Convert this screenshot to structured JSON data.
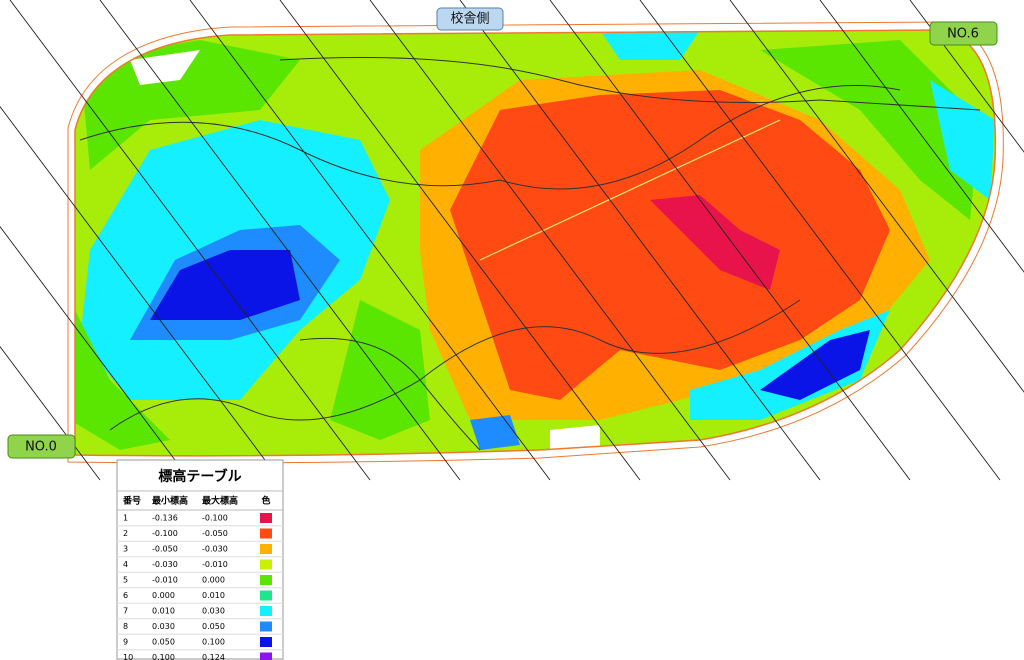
{
  "map": {
    "labels": {
      "top": "校舎側",
      "right": "NO.6",
      "left": "NO.0"
    }
  },
  "legend": {
    "title": "標高テーブル",
    "headers": [
      "番号",
      "最小標高",
      "最大標高",
      "色"
    ],
    "rows": [
      {
        "no": 1,
        "min": "-0.136",
        "max": "-0.100",
        "color": "#e8134a"
      },
      {
        "no": 2,
        "min": "-0.100",
        "max": "-0.050",
        "color": "#ff4a14"
      },
      {
        "no": 3,
        "min": "-0.050",
        "max": "-0.030",
        "color": "#ffb000"
      },
      {
        "no": 4,
        "min": "-0.030",
        "max": "-0.010",
        "color": "#c8f000"
      },
      {
        "no": 5,
        "min": "-0.010",
        "max": "0.000",
        "color": "#5ae600"
      },
      {
        "no": 6,
        "min": "0.000",
        "max": "0.010",
        "color": "#1ee68c"
      },
      {
        "no": 7,
        "min": "0.010",
        "max": "0.030",
        "color": "#14f0ff"
      },
      {
        "no": 8,
        "min": "0.030",
        "max": "0.050",
        "color": "#1e8cff"
      },
      {
        "no": 9,
        "min": "0.050",
        "max": "0.100",
        "color": "#0a14e6"
      },
      {
        "no": 10,
        "min": "0.100",
        "max": "0.124",
        "color": "#8c14f0"
      }
    ]
  }
}
